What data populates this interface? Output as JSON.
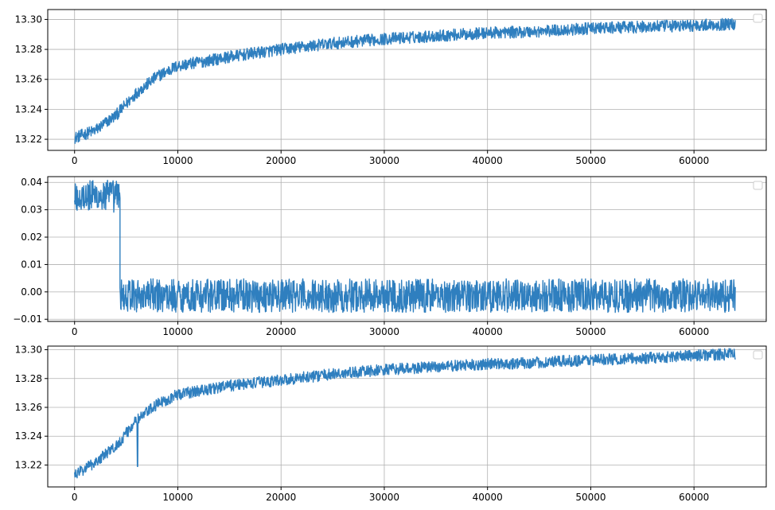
{
  "chart_data": [
    {
      "type": "line",
      "title": "",
      "xlabel": "",
      "ylabel": "",
      "grid": true,
      "legend": {
        "position": "top-right",
        "entries": []
      },
      "xlim": [
        -2600,
        67000
      ],
      "ylim": [
        13.2126,
        13.3066
      ],
      "xticks": [
        0,
        10000,
        20000,
        30000,
        40000,
        50000,
        60000
      ],
      "xtick_labels": [
        "0",
        "10000",
        "20000",
        "30000",
        "40000",
        "50000",
        "60000"
      ],
      "yticks": [
        13.22,
        13.24,
        13.26,
        13.28,
        13.3
      ],
      "ytick_labels": [
        "13.22",
        "13.24",
        "13.26",
        "13.28",
        "13.30"
      ],
      "series": [
        {
          "color": "#2f7fbf",
          "x_range": [
            0,
            64000
          ],
          "trend_x": [
            0,
            2000,
            4000,
            6000,
            8000,
            10000,
            15000,
            20000,
            25000,
            30000,
            35000,
            40000,
            45000,
            50000,
            55000,
            60000,
            64000
          ],
          "trend_y": [
            13.221,
            13.226,
            13.236,
            13.251,
            13.262,
            13.269,
            13.275,
            13.28,
            13.284,
            13.287,
            13.289,
            13.291,
            13.292,
            13.294,
            13.295,
            13.296,
            13.297
          ],
          "noise_band": 0.004
        }
      ]
    },
    {
      "type": "line",
      "title": "",
      "xlabel": "",
      "ylabel": "",
      "grid": true,
      "legend": {
        "position": "top-right",
        "entries": []
      },
      "xlim": [
        -2600,
        67000
      ],
      "ylim": [
        -0.0108,
        0.0421
      ],
      "xticks": [
        0,
        10000,
        20000,
        30000,
        40000,
        50000,
        60000
      ],
      "xtick_labels": [
        "0",
        "10000",
        "20000",
        "30000",
        "40000",
        "50000",
        "60000"
      ],
      "yticks": [
        -0.01,
        0.0,
        0.01,
        0.02,
        0.03,
        0.04
      ],
      "ytick_labels": [
        "−0.01",
        "0.00",
        "0.01",
        "0.02",
        "0.03",
        "0.04"
      ],
      "series": [
        {
          "color": "#2f7fbf",
          "x_range": [
            0,
            64000
          ],
          "segments": [
            {
              "x_start": 0,
              "x_end": 4400,
              "low": 0.029,
              "high": 0.041
            },
            {
              "x_start": 4400,
              "x_end": 64000,
              "low": -0.0075,
              "high": 0.0048
            }
          ]
        }
      ]
    },
    {
      "type": "line",
      "title": "",
      "xlabel": "",
      "ylabel": "",
      "grid": true,
      "legend": {
        "position": "top-right",
        "entries": []
      },
      "xlim": [
        -2600,
        67000
      ],
      "ylim": [
        13.2048,
        13.3025
      ],
      "xticks": [
        0,
        10000,
        20000,
        30000,
        40000,
        50000,
        60000
      ],
      "xtick_labels": [
        "0",
        "10000",
        "20000",
        "30000",
        "40000",
        "50000",
        "60000"
      ],
      "yticks": [
        13.22,
        13.24,
        13.26,
        13.28,
        13.3
      ],
      "ytick_labels": [
        "13.22",
        "13.24",
        "13.26",
        "13.28",
        "13.30"
      ],
      "series": [
        {
          "color": "#2f7fbf",
          "x_range": [
            0,
            64000
          ],
          "trend_x": [
            0,
            2000,
            4000,
            6000,
            8000,
            10000,
            15000,
            20000,
            25000,
            30000,
            35000,
            40000,
            45000,
            50000,
            55000,
            60000,
            64000
          ],
          "trend_y": [
            13.213,
            13.222,
            13.233,
            13.251,
            13.262,
            13.269,
            13.275,
            13.279,
            13.283,
            13.286,
            13.288,
            13.29,
            13.291,
            13.293,
            13.294,
            13.296,
            13.297
          ],
          "noise_band": 0.004,
          "spikes": [
            {
              "x": 6100,
              "y": 13.219
            }
          ]
        }
      ]
    }
  ]
}
